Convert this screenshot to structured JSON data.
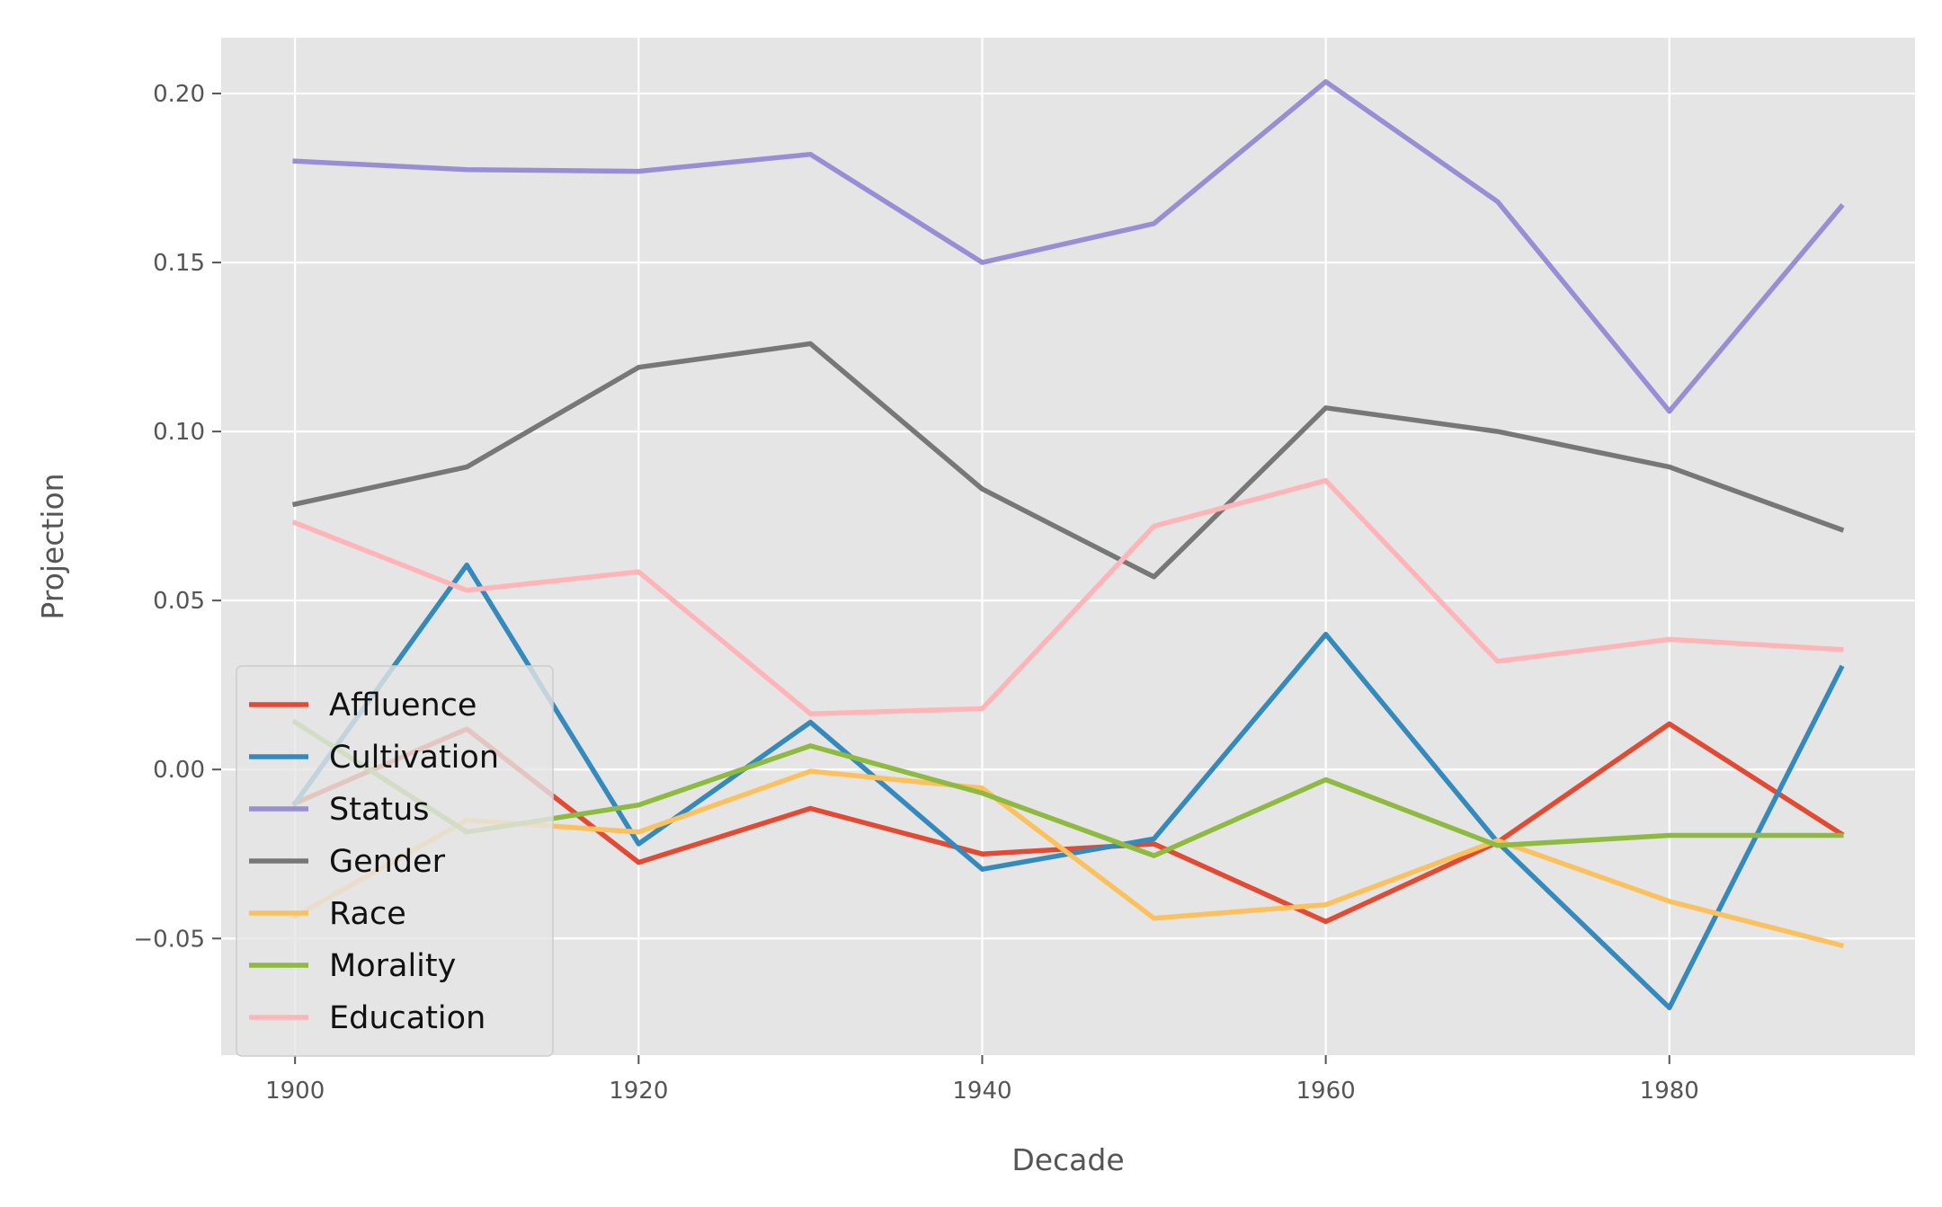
{
  "chart_data": {
    "type": "line",
    "title": "",
    "xlabel": "Decade",
    "ylabel": "Projection",
    "x": [
      1900,
      1910,
      1920,
      1930,
      1940,
      1950,
      1960,
      1970,
      1980,
      1990
    ],
    "xlim": [
      1895.7,
      1994.3
    ],
    "ylim": [
      -0.0845,
      0.2165
    ],
    "xticks": [
      1900,
      1920,
      1940,
      1960,
      1980
    ],
    "xtick_labels": [
      "1900",
      "1920",
      "1940",
      "1960",
      "1980"
    ],
    "yticks": [
      -0.05,
      0.0,
      0.05,
      0.1,
      0.15,
      0.2
    ],
    "ytick_labels": [
      "−0.05",
      "0.00",
      "0.05",
      "0.10",
      "0.15",
      "0.20"
    ],
    "grid": true,
    "legend_position": "lower-left",
    "background": "#e5e5e5",
    "series": [
      {
        "name": "Affluence",
        "color": "#e24a33",
        "values": [
          -0.01,
          0.012,
          -0.0275,
          -0.0115,
          -0.025,
          -0.022,
          -0.045,
          -0.0215,
          0.0135,
          -0.019
        ]
      },
      {
        "name": "Cultivation",
        "color": "#348abd",
        "values": [
          -0.01,
          0.0605,
          -0.022,
          0.014,
          -0.0295,
          -0.0205,
          0.04,
          -0.0215,
          -0.0705,
          0.03
        ]
      },
      {
        "name": "Status",
        "color": "#988ed5",
        "values": [
          0.18,
          0.1775,
          0.177,
          0.182,
          0.15,
          0.1615,
          0.2035,
          0.168,
          0.106,
          0.1665
        ]
      },
      {
        "name": "Gender",
        "color": "#777777",
        "values": [
          0.0785,
          0.0895,
          0.119,
          0.126,
          0.083,
          0.057,
          0.107,
          0.1,
          0.0895,
          0.071
        ]
      },
      {
        "name": "Race",
        "color": "#fbc15e",
        "values": [
          -0.0435,
          -0.015,
          -0.0185,
          -0.0005,
          -0.0055,
          -0.044,
          -0.04,
          -0.021,
          -0.039,
          -0.052
        ]
      },
      {
        "name": "Morality",
        "color": "#8eba42",
        "values": [
          0.014,
          -0.0185,
          -0.0105,
          0.007,
          -0.007,
          -0.0255,
          -0.003,
          -0.0225,
          -0.0195,
          -0.0195
        ]
      },
      {
        "name": "Education",
        "color": "#ffb5b8",
        "values": [
          0.073,
          0.053,
          0.0585,
          0.0165,
          0.018,
          0.072,
          0.0855,
          0.032,
          0.0385,
          0.0355
        ]
      }
    ]
  }
}
